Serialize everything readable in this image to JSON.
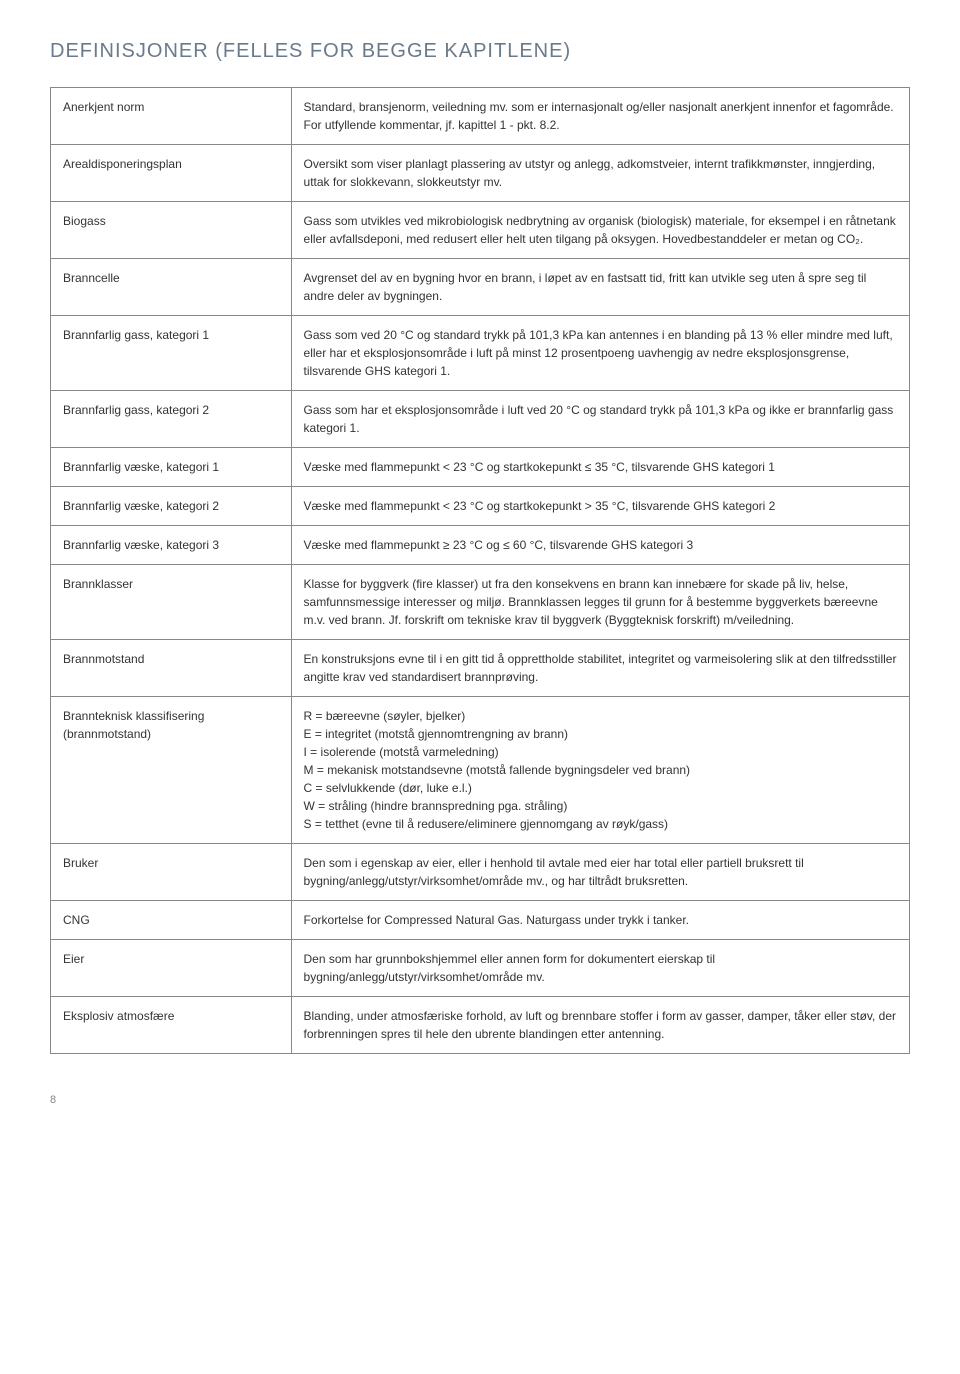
{
  "title": "DEFINISJONER (FELLES FOR BEGGE KAPITLENE)",
  "pageNumber": "8",
  "rows": [
    {
      "term": "Anerkjent norm",
      "def": "Standard, bransjenorm, veiledning mv. som er internasjonalt og/eller nasjonalt anerkjent innenfor et fagområde. For utfyllende kommentar, jf. kapittel 1 - pkt. 8.2."
    },
    {
      "term": "Arealdisponeringsplan",
      "def": "Oversikt som viser planlagt plassering av utstyr og anlegg, adkomstveier, internt trafikkmønster, inngjerding, uttak for slokkevann, slokkeutstyr mv."
    },
    {
      "term": "Biogass",
      "def": "Gass som utvikles ved mikrobiologisk nedbrytning av organisk (biologisk) materiale, for eksempel i en råtnetank eller avfallsdeponi, med redusert eller helt uten tilgang på oksygen. Hovedbestanddeler er metan og CO₂."
    },
    {
      "term": "Branncelle",
      "def": "Avgrenset del av en bygning hvor en brann, i løpet av en fastsatt tid, fritt kan utvikle seg uten å spre seg til andre deler av bygningen."
    },
    {
      "term": "Brannfarlig gass, kategori 1",
      "def": "Gass som ved 20 °C og standard trykk på 101,3 kPa kan antennes i en blanding på 13 % eller mindre med luft, eller har et eksplosjonsområde i luft på minst 12 prosentpoeng uavhengig av nedre eksplosjonsgrense, tilsvarende GHS kategori 1."
    },
    {
      "term": "Brannfarlig gass, kategori 2",
      "def": "Gass som har et eksplosjonsområde i luft ved 20 °C og standard trykk på 101,3 kPa og ikke er brannfarlig gass kategori 1."
    },
    {
      "term": "Brannfarlig væske, kategori 1",
      "def": "Væske med flammepunkt < 23 °C og startkokepunkt ≤ 35 °C, tilsvarende GHS kategori 1"
    },
    {
      "term": "Brannfarlig væske, kategori 2",
      "def": "Væske med flammepunkt < 23 °C og startkokepunkt > 35 °C, tilsvarende GHS kategori 2"
    },
    {
      "term": "Brannfarlig væske, kategori 3",
      "def": "Væske med flammepunkt ≥ 23 °C og ≤ 60 °C, tilsvarende GHS kategori 3"
    },
    {
      "term": "Brannklasser",
      "def": "Klasse for byggverk (fire klasser) ut fra den konsekvens en brann kan innebære for skade på liv, helse, samfunnsmessige interesser og miljø. Brannklassen legges til grunn for å bestemme byggverkets bæreevne m.v. ved brann. Jf. forskrift om tekniske krav til byggverk (Byggteknisk forskrift) m/veiledning."
    },
    {
      "term": "Brannmotstand",
      "def": "En konstruksjons evne til i en gitt tid å opprettholde stabilitet, integritet og varmeisolering slik at den tilfredsstiller angitte krav ved standardisert brannprøving."
    },
    {
      "term": "Brannteknisk klassifisering (brannmotstand)",
      "def": "R = bæreevne (søyler, bjelker)\nE = integritet (motstå gjennomtrengning av brann)\nI = isolerende (motstå varmeledning)\nM = mekanisk motstandsevne (motstå fallende bygningsdeler ved brann)\nC = selvlukkende (dør, luke e.l.)\nW = stråling (hindre brannspredning pga. stråling)\nS = tetthet (evne til å redusere/eliminere gjennomgang av røyk/gass)"
    },
    {
      "term": "Bruker",
      "def": "Den som i egenskap av eier, eller i henhold til avtale med eier har total eller partiell bruksrett til bygning/anlegg/utstyr/virksomhet/område mv., og har tiltrådt bruksretten."
    },
    {
      "term": "CNG",
      "def": "Forkortelse for Compressed Natural Gas. Naturgass under trykk i tanker."
    },
    {
      "term": "Eier",
      "def": "Den som har grunnbokshjemmel eller annen form for dokumentert eierskap til bygning/anlegg/utstyr/virksomhet/område mv."
    },
    {
      "term": "Eksplosiv atmosfære",
      "def": "Blanding, under atmosfæriske forhold, av luft og brennbare stoffer i form av gasser, damper, tåker eller støv, der forbrenningen spres til hele den ubrente blandingen etter antenning."
    }
  ]
}
